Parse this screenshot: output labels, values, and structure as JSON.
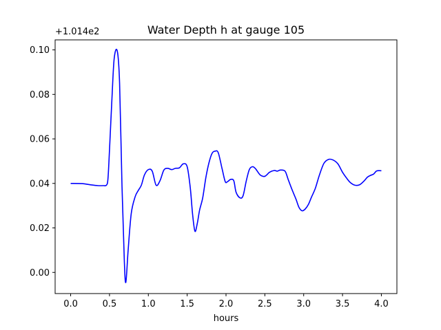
{
  "chart_data": {
    "type": "line",
    "title": "Water Depth h at gauge 105",
    "xlabel": "hours",
    "ylabel": "",
    "y_offset_label": "+1.014e2",
    "xlim": [
      -0.2,
      4.2
    ],
    "ylim": [
      -0.0095,
      0.1045
    ],
    "xticks": [
      0.0,
      0.5,
      1.0,
      1.5,
      2.0,
      2.5,
      3.0,
      3.5,
      4.0
    ],
    "xtick_labels": [
      "0.0",
      "0.5",
      "1.0",
      "1.5",
      "2.0",
      "2.5",
      "3.0",
      "3.5",
      "4.0"
    ],
    "yticks": [
      0.0,
      0.02,
      0.04,
      0.06,
      0.08,
      0.1
    ],
    "ytick_labels": [
      "0.00",
      "0.02",
      "0.04",
      "0.06",
      "0.08",
      "0.10"
    ],
    "grid": false,
    "series": [
      {
        "color": "#0000ff",
        "x": [
          0.0,
          0.15,
          0.25,
          0.35,
          0.42,
          0.46,
          0.48,
          0.5,
          0.53,
          0.56,
          0.6,
          0.63,
          0.66,
          0.69,
          0.71,
          0.74,
          0.78,
          0.83,
          0.87,
          0.91,
          0.95,
          1.0,
          1.05,
          1.1,
          1.15,
          1.2,
          1.25,
          1.3,
          1.35,
          1.4,
          1.45,
          1.5,
          1.54,
          1.57,
          1.6,
          1.63,
          1.66,
          1.7,
          1.74,
          1.78,
          1.82,
          1.86,
          1.9,
          1.95,
          1.99,
          2.02,
          2.06,
          2.1,
          2.13,
          2.18,
          2.22,
          2.26,
          2.3,
          2.34,
          2.38,
          2.44,
          2.5,
          2.56,
          2.62,
          2.66,
          2.7,
          2.76,
          2.8,
          2.85,
          2.9,
          2.94,
          2.98,
          3.02,
          3.06,
          3.1,
          3.15,
          3.2,
          3.26,
          3.32,
          3.38,
          3.44,
          3.5,
          3.55,
          3.6,
          3.66,
          3.72,
          3.78,
          3.82,
          3.86,
          3.9,
          3.94,
          4.0
        ],
        "y": [
          0.04,
          0.0399,
          0.0394,
          0.039,
          0.039,
          0.0392,
          0.042,
          0.055,
          0.077,
          0.096,
          0.0995,
          0.085,
          0.04,
          0.006,
          -0.0045,
          0.01,
          0.0265,
          0.034,
          0.0368,
          0.0392,
          0.0438,
          0.0462,
          0.0455,
          0.0392,
          0.0412,
          0.046,
          0.0468,
          0.0462,
          0.0468,
          0.047,
          0.0488,
          0.0475,
          0.038,
          0.026,
          0.0185,
          0.022,
          0.028,
          0.0335,
          0.0425,
          0.0492,
          0.0535,
          0.0545,
          0.0538,
          0.0465,
          0.0408,
          0.0408,
          0.0418,
          0.0412,
          0.036,
          0.0335,
          0.0345,
          0.041,
          0.0462,
          0.0475,
          0.0466,
          0.0438,
          0.0432,
          0.045,
          0.0458,
          0.0455,
          0.046,
          0.0455,
          0.0418,
          0.0372,
          0.033,
          0.0292,
          0.0277,
          0.0285,
          0.0305,
          0.0338,
          0.0378,
          0.0435,
          0.049,
          0.0508,
          0.0505,
          0.0488,
          0.045,
          0.0425,
          0.0404,
          0.0392,
          0.0394,
          0.0412,
          0.0428,
          0.0436,
          0.0442,
          0.0456,
          0.0457
        ]
      }
    ]
  }
}
